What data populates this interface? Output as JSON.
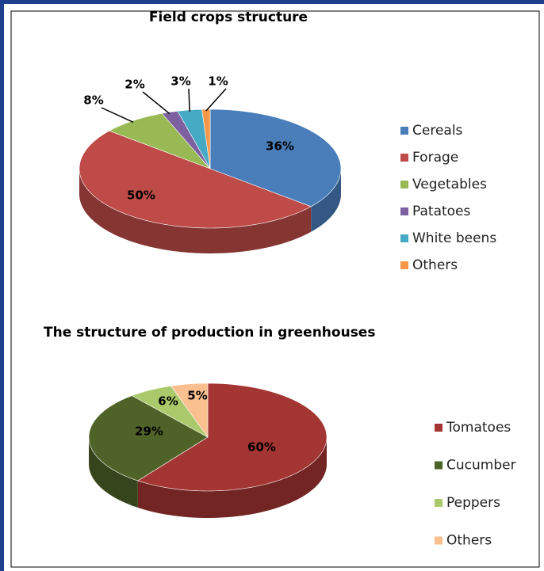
{
  "chart_data": [
    {
      "type": "pie",
      "title": "Field crops structure",
      "categories": [
        "Cereals",
        "Forage",
        "Vegetables",
        "Patatoes",
        "White beens",
        "Others"
      ],
      "values": [
        36,
        50,
        8,
        2,
        3,
        1
      ],
      "value_labels": [
        "36%",
        "50%",
        "8%",
        "2%",
        "3%",
        "1%"
      ],
      "colors": [
        "#4a7ebb",
        "#be4b48",
        "#98b954",
        "#7d60a0",
        "#46aac5",
        "#f79646"
      ],
      "legend": "right"
    },
    {
      "type": "pie",
      "title": "The structure of production in greenhouses",
      "categories": [
        "Tomatoes",
        "Cucumber",
        "Peppers",
        "Others"
      ],
      "values": [
        60,
        29,
        6,
        5
      ],
      "value_labels": [
        "60%",
        "29%",
        "6%",
        "5%"
      ],
      "colors": [
        "#a33532",
        "#4f6228",
        "#a9c96a",
        "#fac090"
      ],
      "legend": "right"
    }
  ]
}
